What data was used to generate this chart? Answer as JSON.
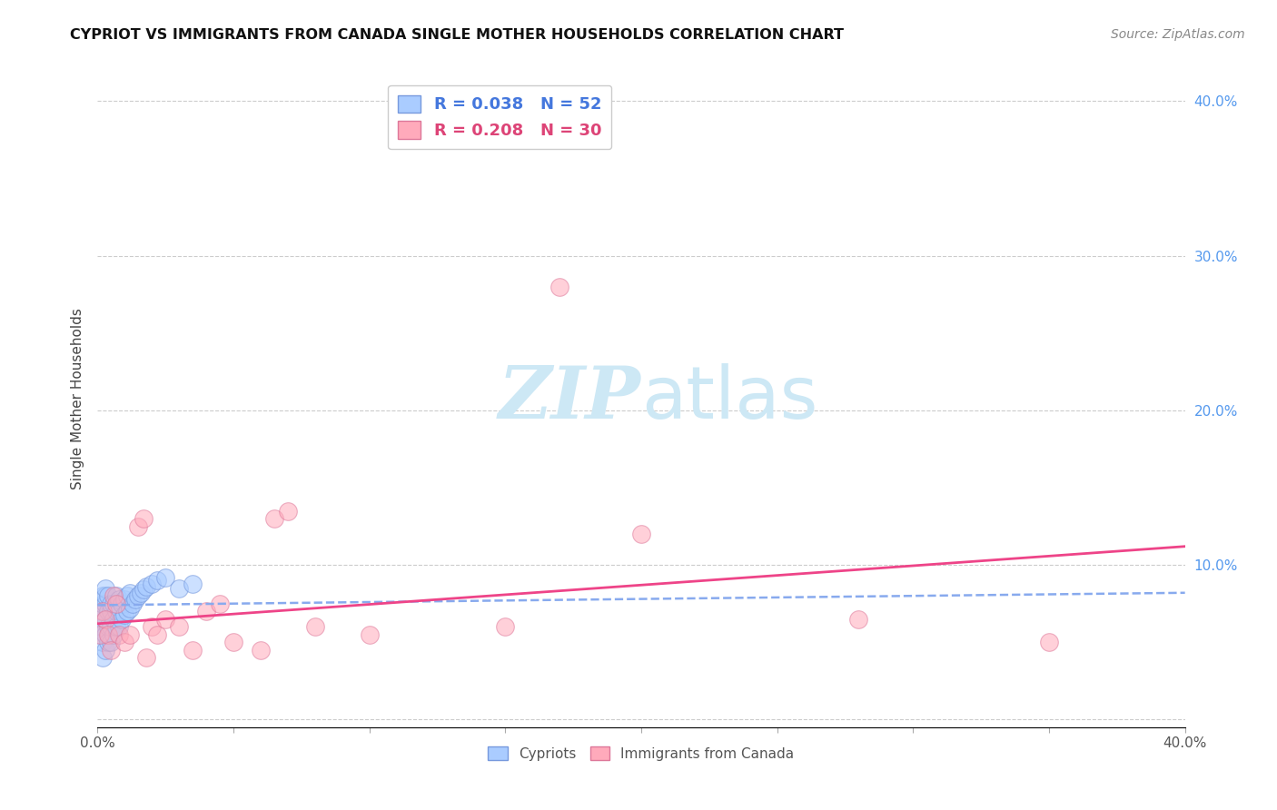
{
  "title": "CYPRIOT VS IMMIGRANTS FROM CANADA SINGLE MOTHER HOUSEHOLDS CORRELATION CHART",
  "source": "Source: ZipAtlas.com",
  "ylabel": "Single Mother Households",
  "xlim": [
    0.0,
    0.4
  ],
  "ylim": [
    -0.005,
    0.42
  ],
  "legend1_label": "R = 0.038   N = 52",
  "legend2_label": "R = 0.208   N = 30",
  "legend1_text_color": "#4477dd",
  "legend2_text_color": "#dd4477",
  "blue_face_color": "#aaccff",
  "blue_edge_color": "#7799dd",
  "pink_face_color": "#ffaabb",
  "pink_edge_color": "#dd7799",
  "blue_trend_color": "#88aaee",
  "pink_trend_color": "#ee4488",
  "watermark_color": "#cde8f5",
  "background_color": "#ffffff",
  "grid_color": "#cccccc",
  "ytick_color": "#5599ee",
  "xtick_color": "#555555",
  "cypriot_x": [
    0.001,
    0.001,
    0.001,
    0.001,
    0.002,
    0.002,
    0.002,
    0.002,
    0.002,
    0.002,
    0.003,
    0.003,
    0.003,
    0.003,
    0.003,
    0.003,
    0.004,
    0.004,
    0.004,
    0.004,
    0.005,
    0.005,
    0.005,
    0.005,
    0.006,
    0.006,
    0.006,
    0.007,
    0.007,
    0.007,
    0.008,
    0.008,
    0.008,
    0.009,
    0.009,
    0.01,
    0.01,
    0.011,
    0.011,
    0.012,
    0.012,
    0.013,
    0.014,
    0.015,
    0.016,
    0.017,
    0.018,
    0.02,
    0.022,
    0.025,
    0.03,
    0.035
  ],
  "cypriot_y": [
    0.055,
    0.06,
    0.065,
    0.07,
    0.04,
    0.05,
    0.06,
    0.07,
    0.075,
    0.08,
    0.045,
    0.055,
    0.065,
    0.075,
    0.08,
    0.085,
    0.05,
    0.06,
    0.07,
    0.08,
    0.05,
    0.06,
    0.07,
    0.075,
    0.055,
    0.065,
    0.075,
    0.06,
    0.07,
    0.08,
    0.06,
    0.07,
    0.078,
    0.065,
    0.075,
    0.068,
    0.078,
    0.07,
    0.08,
    0.072,
    0.082,
    0.075,
    0.078,
    0.08,
    0.082,
    0.084,
    0.086,
    0.088,
    0.09,
    0.092,
    0.085,
    0.088
  ],
  "canada_x": [
    0.001,
    0.002,
    0.003,
    0.004,
    0.005,
    0.006,
    0.007,
    0.008,
    0.01,
    0.012,
    0.015,
    0.017,
    0.018,
    0.02,
    0.022,
    0.025,
    0.03,
    0.035,
    0.04,
    0.045,
    0.05,
    0.06,
    0.065,
    0.07,
    0.08,
    0.1,
    0.15,
    0.2,
    0.28,
    0.35
  ],
  "canada_y": [
    0.055,
    0.07,
    0.065,
    0.055,
    0.045,
    0.08,
    0.075,
    0.055,
    0.05,
    0.055,
    0.125,
    0.13,
    0.04,
    0.06,
    0.055,
    0.065,
    0.06,
    0.045,
    0.07,
    0.075,
    0.05,
    0.045,
    0.13,
    0.135,
    0.06,
    0.055,
    0.06,
    0.12,
    0.065,
    0.05
  ],
  "canada_y_high": [
    0.28
  ],
  "canada_x_high": [
    0.17
  ],
  "blue_trend_x": [
    0.0,
    0.4
  ],
  "blue_trend_y": [
    0.074,
    0.082
  ],
  "pink_trend_x": [
    0.0,
    0.4
  ],
  "pink_trend_y": [
    0.062,
    0.112
  ]
}
